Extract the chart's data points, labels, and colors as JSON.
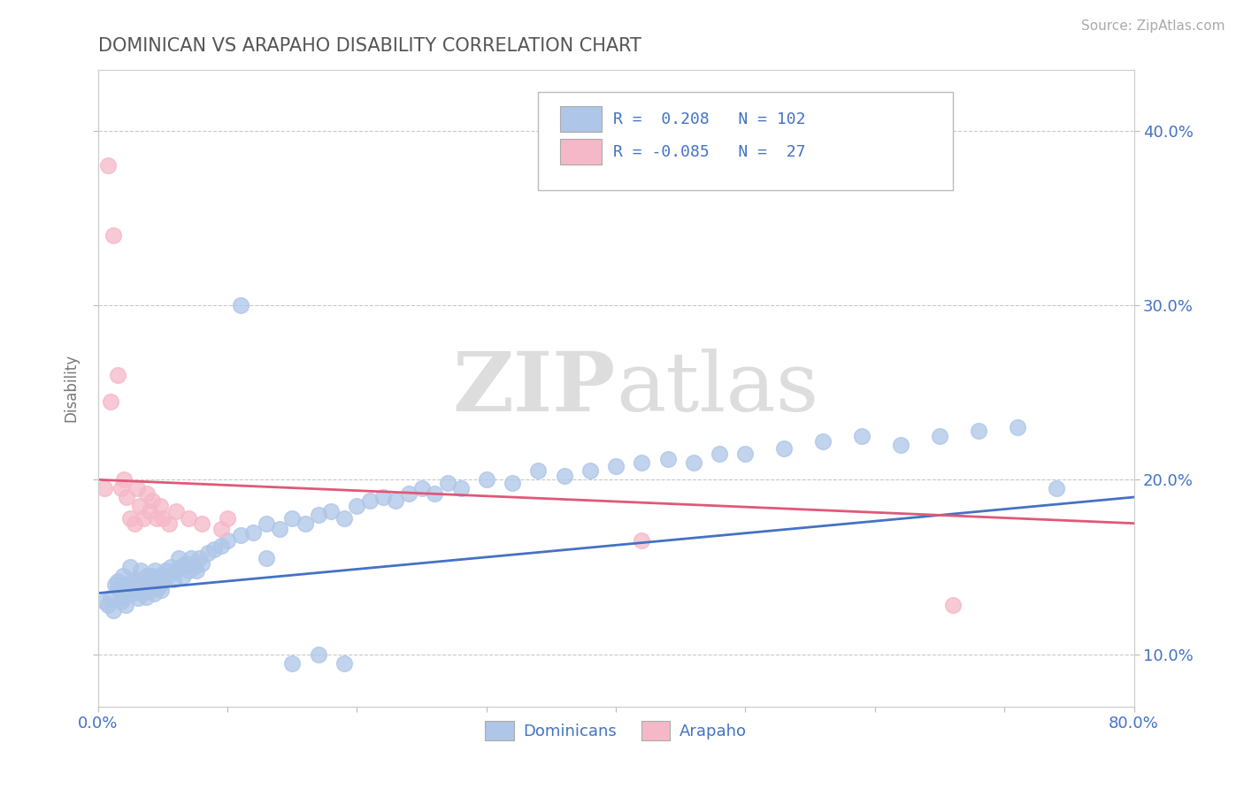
{
  "title": "DOMINICAN VS ARAPAHO DISABILITY CORRELATION CHART",
  "source": "Source: ZipAtlas.com",
  "ylabel": "Disability",
  "xmin": 0.0,
  "xmax": 0.8,
  "ymin": 0.07,
  "ymax": 0.435,
  "yticks": [
    0.1,
    0.2,
    0.3,
    0.4
  ],
  "ytick_labels": [
    "10.0%",
    "20.0%",
    "30.0%",
    "40.0%"
  ],
  "xticks": [
    0.0,
    0.1,
    0.2,
    0.3,
    0.4,
    0.5,
    0.6,
    0.7,
    0.8
  ],
  "dominican_R": 0.208,
  "dominican_N": 102,
  "arapaho_R": -0.085,
  "arapaho_N": 27,
  "dominican_color": "#aec6e8",
  "arapaho_color": "#f5b8c8",
  "dominican_line_color": "#4472c4",
  "arapaho_line_color": "#e05878",
  "background_color": "#ffffff",
  "grid_color": "#bbbbbb",
  "text_color": "#4472c4",
  "title_color": "#555555",
  "watermark": "ZIPatlas",
  "watermark_color": "#dddddd",
  "dom_x": [
    0.005,
    0.008,
    0.01,
    0.012,
    0.013,
    0.015,
    0.015,
    0.017,
    0.018,
    0.019,
    0.02,
    0.021,
    0.022,
    0.023,
    0.024,
    0.025,
    0.026,
    0.027,
    0.028,
    0.029,
    0.03,
    0.031,
    0.032,
    0.033,
    0.034,
    0.035,
    0.036,
    0.037,
    0.038,
    0.039,
    0.04,
    0.041,
    0.042,
    0.043,
    0.044,
    0.045,
    0.046,
    0.047,
    0.048,
    0.049,
    0.05,
    0.052,
    0.054,
    0.056,
    0.058,
    0.06,
    0.062,
    0.064,
    0.066,
    0.068,
    0.07,
    0.072,
    0.074,
    0.076,
    0.078,
    0.08,
    0.085,
    0.09,
    0.095,
    0.1,
    0.11,
    0.12,
    0.13,
    0.14,
    0.15,
    0.16,
    0.17,
    0.18,
    0.19,
    0.2,
    0.21,
    0.22,
    0.23,
    0.24,
    0.25,
    0.26,
    0.27,
    0.28,
    0.3,
    0.32,
    0.34,
    0.36,
    0.38,
    0.4,
    0.42,
    0.44,
    0.46,
    0.48,
    0.5,
    0.53,
    0.56,
    0.59,
    0.62,
    0.65,
    0.68,
    0.71,
    0.74,
    0.11,
    0.13,
    0.15,
    0.17,
    0.19
  ],
  "dom_y": [
    0.13,
    0.128,
    0.132,
    0.125,
    0.14,
    0.138,
    0.142,
    0.135,
    0.13,
    0.145,
    0.133,
    0.128,
    0.135,
    0.14,
    0.138,
    0.15,
    0.135,
    0.142,
    0.137,
    0.143,
    0.138,
    0.132,
    0.14,
    0.148,
    0.135,
    0.142,
    0.138,
    0.133,
    0.145,
    0.14,
    0.138,
    0.145,
    0.14,
    0.135,
    0.148,
    0.142,
    0.138,
    0.145,
    0.14,
    0.137,
    0.142,
    0.148,
    0.145,
    0.15,
    0.143,
    0.148,
    0.155,
    0.15,
    0.145,
    0.152,
    0.148,
    0.155,
    0.15,
    0.148,
    0.155,
    0.152,
    0.158,
    0.16,
    0.162,
    0.165,
    0.168,
    0.17,
    0.175,
    0.172,
    0.178,
    0.175,
    0.18,
    0.182,
    0.178,
    0.185,
    0.188,
    0.19,
    0.188,
    0.192,
    0.195,
    0.192,
    0.198,
    0.195,
    0.2,
    0.198,
    0.205,
    0.202,
    0.205,
    0.208,
    0.21,
    0.212,
    0.21,
    0.215,
    0.215,
    0.218,
    0.222,
    0.225,
    0.22,
    0.225,
    0.228,
    0.23,
    0.195,
    0.3,
    0.155,
    0.095,
    0.1,
    0.095
  ],
  "ara_x": [
    0.005,
    0.008,
    0.01,
    0.012,
    0.015,
    0.018,
    0.02,
    0.022,
    0.025,
    0.028,
    0.03,
    0.032,
    0.035,
    0.038,
    0.04,
    0.042,
    0.045,
    0.048,
    0.05,
    0.055,
    0.06,
    0.07,
    0.08,
    0.095,
    0.1,
    0.42,
    0.66
  ],
  "ara_y": [
    0.195,
    0.38,
    0.245,
    0.34,
    0.26,
    0.195,
    0.2,
    0.19,
    0.178,
    0.175,
    0.195,
    0.185,
    0.178,
    0.192,
    0.182,
    0.188,
    0.178,
    0.185,
    0.178,
    0.175,
    0.182,
    0.178,
    0.175,
    0.172,
    0.178,
    0.165,
    0.128
  ],
  "dom_trend_start_y": 0.135,
  "dom_trend_end_y": 0.19,
  "ara_trend_start_y": 0.2,
  "ara_trend_end_y": 0.175
}
